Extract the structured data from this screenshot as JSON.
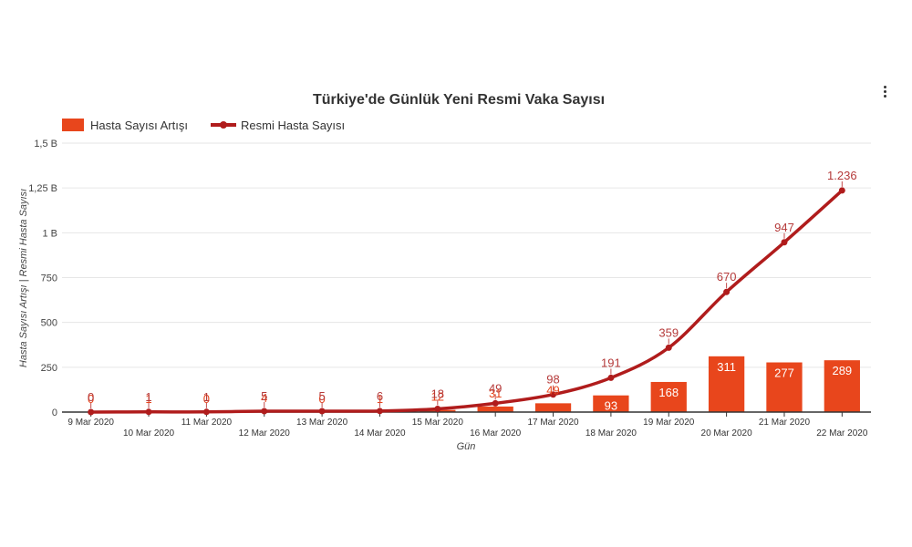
{
  "chart_data": {
    "type": "bar",
    "title": "Türkiye'de Günlük Yeni Resmi Vaka Sayısı",
    "xlabel": "Gün",
    "ylabel": "Hasta Sayısı Artışı | Resmi Hasta Sayısı",
    "ylim": [
      0,
      1500
    ],
    "yticks": [
      0,
      250,
      500,
      750,
      1000,
      1250,
      1500
    ],
    "ytick_labels": [
      "0",
      "250",
      "500",
      "750",
      "1 B",
      "1,25 B",
      "1,5 B"
    ],
    "categories": [
      "9 Mar 2020",
      "10 Mar 2020",
      "11 Mar 2020",
      "12 Mar 2020",
      "13 Mar 2020",
      "14 Mar 2020",
      "15 Mar 2020",
      "16 Mar 2020",
      "17 Mar 2020",
      "18 Mar 2020",
      "19 Mar 2020",
      "20 Mar 2020",
      "21 Mar 2020",
      "22 Mar 2020"
    ],
    "grid": true,
    "legend_position": "top-left",
    "series": [
      {
        "name": "Hasta Sayısı Artışı",
        "type": "bar",
        "color": "#e8461c",
        "values": [
          0,
          1,
          0,
          4,
          0,
          1,
          12,
          31,
          49,
          93,
          168,
          311,
          277,
          289
        ],
        "labels": [
          "0",
          "1",
          "0",
          "4",
          "0",
          "1",
          "12",
          "31",
          "49",
          "93",
          "168",
          "311",
          "277",
          "289"
        ]
      },
      {
        "name": "Resmi Hasta Sayısı",
        "type": "line",
        "color": "#b01c1c",
        "values": [
          0,
          1,
          1,
          5,
          5,
          6,
          18,
          49,
          98,
          191,
          359,
          670,
          947,
          1236
        ],
        "labels": [
          "0",
          "1",
          "1",
          "5",
          "5",
          "6",
          "18",
          "49",
          "98",
          "191",
          "359",
          "670",
          "947",
          "1.236"
        ]
      }
    ]
  },
  "menu": {
    "icon": "more-vertical-icon"
  }
}
